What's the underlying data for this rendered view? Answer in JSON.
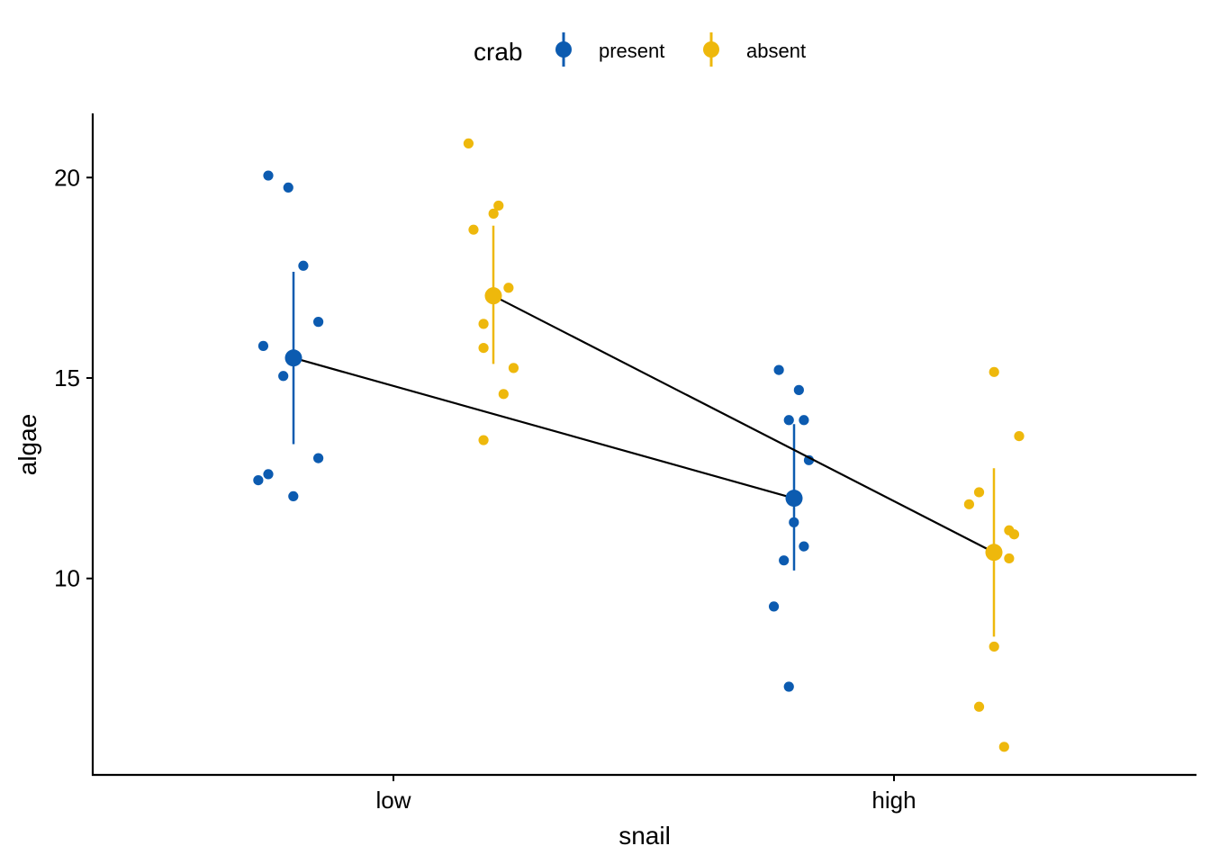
{
  "colors": {
    "present": "#0C5BB0",
    "absent": "#EEB80C",
    "mean_line": "#000000",
    "axis": "#000000"
  },
  "legend": {
    "title": "crab",
    "items": [
      {
        "label": "present",
        "color": "#0C5BB0"
      },
      {
        "label": "absent",
        "color": "#EEB80C"
      }
    ],
    "position": "top"
  },
  "chart_data": {
    "type": "scatter",
    "title": "",
    "xlabel": "snail",
    "ylabel": "algae",
    "categories": [
      "low",
      "high"
    ],
    "ylim": [
      5.1,
      21.6
    ],
    "y_ticks": [
      10,
      15,
      20
    ],
    "grid": false,
    "series": [
      {
        "name": "present",
        "color": "#0C5BB0",
        "points": [
          {
            "x": "low",
            "jitter": -0.25,
            "y": 20.05
          },
          {
            "x": "low",
            "jitter": -0.21,
            "y": 19.75
          },
          {
            "x": "low",
            "jitter": -0.18,
            "y": 17.8
          },
          {
            "x": "low",
            "jitter": -0.15,
            "y": 16.4
          },
          {
            "x": "low",
            "jitter": -0.26,
            "y": 15.8
          },
          {
            "x": "low",
            "jitter": -0.22,
            "y": 15.05
          },
          {
            "x": "low",
            "jitter": -0.15,
            "y": 13.0
          },
          {
            "x": "low",
            "jitter": -0.25,
            "y": 12.6
          },
          {
            "x": "low",
            "jitter": -0.27,
            "y": 12.45
          },
          {
            "x": "low",
            "jitter": -0.2,
            "y": 12.05
          },
          {
            "x": "high",
            "jitter": -0.23,
            "y": 15.2
          },
          {
            "x": "high",
            "jitter": -0.19,
            "y": 14.7
          },
          {
            "x": "high",
            "jitter": -0.21,
            "y": 13.95
          },
          {
            "x": "high",
            "jitter": -0.18,
            "y": 13.95
          },
          {
            "x": "high",
            "jitter": -0.17,
            "y": 12.95
          },
          {
            "x": "high",
            "jitter": -0.2,
            "y": 11.4
          },
          {
            "x": "high",
            "jitter": -0.18,
            "y": 10.8
          },
          {
            "x": "high",
            "jitter": -0.22,
            "y": 10.45
          },
          {
            "x": "high",
            "jitter": -0.24,
            "y": 9.3
          },
          {
            "x": "high",
            "jitter": -0.21,
            "y": 7.3
          }
        ],
        "summary": [
          {
            "x": "low",
            "mean": 15.5,
            "lower": 13.35,
            "upper": 17.65
          },
          {
            "x": "high",
            "mean": 12.0,
            "lower": 10.2,
            "upper": 13.85
          }
        ]
      },
      {
        "name": "absent",
        "color": "#EEB80C",
        "points": [
          {
            "x": "low",
            "jitter": 0.15,
            "y": 20.85
          },
          {
            "x": "low",
            "jitter": 0.21,
            "y": 19.3
          },
          {
            "x": "low",
            "jitter": 0.2,
            "y": 19.1
          },
          {
            "x": "low",
            "jitter": 0.16,
            "y": 18.7
          },
          {
            "x": "low",
            "jitter": 0.23,
            "y": 17.25
          },
          {
            "x": "low",
            "jitter": 0.18,
            "y": 16.35
          },
          {
            "x": "low",
            "jitter": 0.18,
            "y": 15.75
          },
          {
            "x": "low",
            "jitter": 0.24,
            "y": 15.25
          },
          {
            "x": "low",
            "jitter": 0.22,
            "y": 14.6
          },
          {
            "x": "low",
            "jitter": 0.18,
            "y": 13.45
          },
          {
            "x": "high",
            "jitter": 0.2,
            "y": 15.15
          },
          {
            "x": "high",
            "jitter": 0.25,
            "y": 13.55
          },
          {
            "x": "high",
            "jitter": 0.17,
            "y": 12.15
          },
          {
            "x": "high",
            "jitter": 0.15,
            "y": 11.85
          },
          {
            "x": "high",
            "jitter": 0.23,
            "y": 11.2
          },
          {
            "x": "high",
            "jitter": 0.24,
            "y": 11.1
          },
          {
            "x": "high",
            "jitter": 0.23,
            "y": 10.5
          },
          {
            "x": "high",
            "jitter": 0.2,
            "y": 8.3
          },
          {
            "x": "high",
            "jitter": 0.17,
            "y": 6.8
          },
          {
            "x": "high",
            "jitter": 0.22,
            "y": 5.8
          }
        ],
        "summary": [
          {
            "x": "low",
            "mean": 17.05,
            "lower": 15.35,
            "upper": 18.8
          },
          {
            "x": "high",
            "mean": 10.65,
            "lower": 8.55,
            "upper": 12.75
          }
        ]
      }
    ]
  }
}
